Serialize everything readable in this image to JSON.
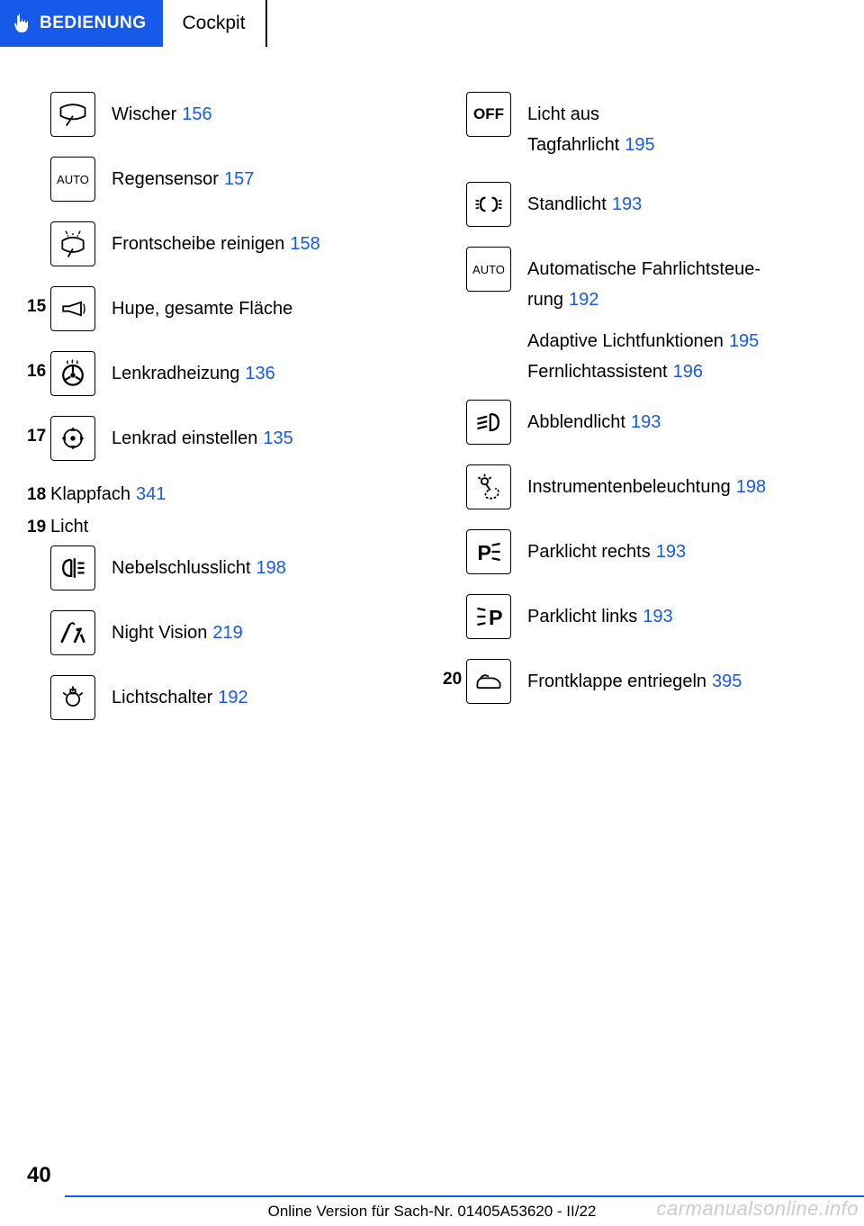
{
  "header": {
    "category": "BEDIENUNG",
    "section": "Cockpit"
  },
  "left_column": [
    {
      "num": "",
      "icon": "wiper",
      "lines": [
        {
          "label": "Wischer",
          "page": "156"
        }
      ]
    },
    {
      "num": "",
      "icon": "auto-text",
      "lines": [
        {
          "label": "Regensensor",
          "page": "157"
        }
      ]
    },
    {
      "num": "",
      "icon": "windshield-clean",
      "lines": [
        {
          "label": "Frontscheibe reinigen",
          "page": "158"
        }
      ]
    },
    {
      "num": "15",
      "icon": "horn",
      "lines": [
        {
          "label": "Hupe, gesamte Fläche",
          "page": ""
        }
      ]
    },
    {
      "num": "16",
      "icon": "steering-heat",
      "lines": [
        {
          "label": "Lenkradheizung",
          "page": "136"
        }
      ]
    },
    {
      "num": "17",
      "icon": "steering-adjust",
      "lines": [
        {
          "label": "Lenkrad einstellen",
          "page": "135"
        }
      ]
    }
  ],
  "left_simple": [
    {
      "num": "18",
      "label": "Klappfach",
      "page": "341"
    },
    {
      "num": "19",
      "label": "Licht",
      "page": ""
    }
  ],
  "left_column2": [
    {
      "num": "",
      "icon": "rear-fog",
      "lines": [
        {
          "label": "Nebelschlusslicht",
          "page": "198"
        }
      ]
    },
    {
      "num": "",
      "icon": "night-vision",
      "lines": [
        {
          "label": "Night Vision",
          "page": "219"
        }
      ]
    },
    {
      "num": "",
      "icon": "light-switch",
      "lines": [
        {
          "label": "Lichtschalter",
          "page": "192"
        }
      ]
    }
  ],
  "right_column": [
    {
      "num": "",
      "icon": "off-text",
      "lines": [
        {
          "label": "Licht aus",
          "page": ""
        },
        {
          "label": "Tagfahrlicht",
          "page": "195"
        }
      ]
    },
    {
      "num": "",
      "icon": "standlight",
      "lines": [
        {
          "label": "Standlicht",
          "page": "193"
        }
      ]
    },
    {
      "num": "",
      "icon": "auto-text",
      "lines": [
        {
          "label": "Automatische Fahrlichtsteue-\nrung",
          "page": "192"
        }
      ],
      "extra": [
        {
          "label": "Adaptive Lichtfunktionen",
          "page": "195"
        },
        {
          "label": "Fernlichtassistent",
          "page": "196"
        }
      ]
    },
    {
      "num": "",
      "icon": "low-beam",
      "lines": [
        {
          "label": "Abblendlicht",
          "page": "193"
        }
      ]
    },
    {
      "num": "",
      "icon": "instrument-light",
      "lines": [
        {
          "label": "Instrumentenbeleuchtung",
          "page": "198"
        }
      ]
    },
    {
      "num": "",
      "icon": "park-right",
      "lines": [
        {
          "label": "Parklicht rechts",
          "page": "193"
        }
      ]
    },
    {
      "num": "",
      "icon": "park-left",
      "lines": [
        {
          "label": "Parklicht links",
          "page": "193"
        }
      ]
    },
    {
      "num": "20",
      "icon": "hood-release",
      "lines": [
        {
          "label": "Frontklappe entriegeln",
          "page": "395"
        }
      ]
    }
  ],
  "footer": {
    "page_number": "40",
    "text": "Online Version für Sach-Nr. 01405A53620 - II/22",
    "watermark": "carmanualsonline.info"
  },
  "colors": {
    "accent": "#1759e8",
    "text": "#000000",
    "watermark": "#cccccc"
  }
}
